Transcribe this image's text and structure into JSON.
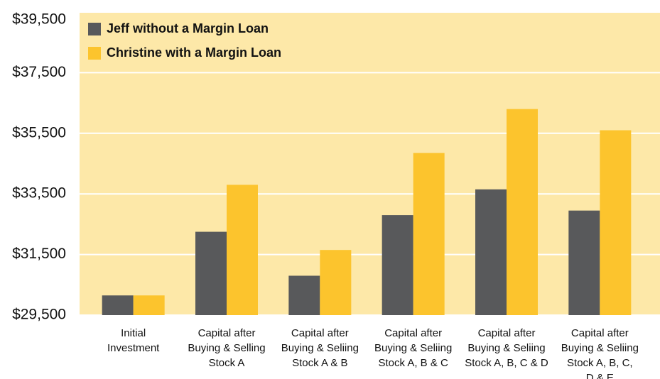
{
  "chart_data": {
    "type": "bar",
    "categories": [
      [
        "Initial",
        "Investment"
      ],
      [
        "Capital after",
        "Buying & Selling",
        "Stock A"
      ],
      [
        "Capital after",
        "Buying & Seliing",
        "Stock A & B"
      ],
      [
        "Capital after",
        "Buying & Seliing",
        "Stock A, B & C"
      ],
      [
        "Capital after",
        "Buying & Seliing",
        "Stock A, B, C & D"
      ],
      [
        "Capital after",
        "Buying & Seliing",
        "Stock A, B, C,",
        "D & E"
      ]
    ],
    "series": [
      {
        "name": "Jeff without a Margin Loan",
        "color": "#58595b",
        "values": [
          30150,
          32250,
          30800,
          32800,
          33650,
          32950
        ]
      },
      {
        "name": "Christine with a Margin Loan",
        "color": "#fcc42d",
        "values": [
          30150,
          33800,
          31650,
          34850,
          36300,
          35600
        ]
      }
    ],
    "ylim": [
      29500,
      39500
    ],
    "yticks": [
      {
        "value": 29500,
        "label": "$29,500"
      },
      {
        "value": 31500,
        "label": "$31,500"
      },
      {
        "value": 33500,
        "label": "$33,500"
      },
      {
        "value": 35500,
        "label": "$35,500"
      },
      {
        "value": 37500,
        "label": "$37,500"
      },
      {
        "value": 39500,
        "label": "$39,500"
      }
    ],
    "grid": true,
    "legend": "top-left",
    "background": "#fde8a8"
  }
}
